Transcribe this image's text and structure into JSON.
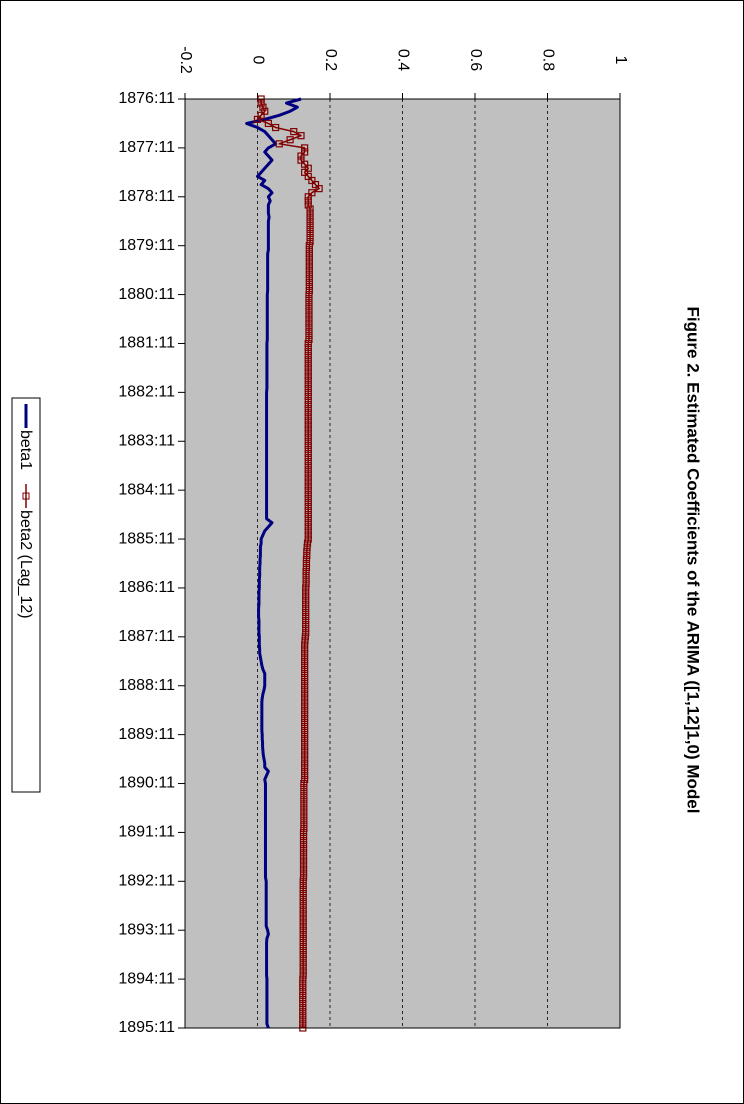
{
  "chart_data": {
    "type": "line",
    "title": "Figure 2. Estimated Coefficients of the ARIMA ([1,12]1,0) Model",
    "categories": [
      "1876:11",
      null,
      null,
      null,
      null,
      null,
      null,
      null,
      null,
      null,
      null,
      null,
      "1877:11",
      null,
      null,
      null,
      null,
      null,
      null,
      null,
      null,
      null,
      null,
      null,
      "1878:11",
      null,
      null,
      null,
      null,
      null,
      null,
      null,
      null,
      null,
      null,
      null,
      "1879:11",
      null,
      null,
      null,
      null,
      null,
      null,
      null,
      null,
      null,
      null,
      null,
      "1880:11",
      null,
      null,
      null,
      null,
      null,
      null,
      null,
      null,
      null,
      null,
      null,
      "1881:11",
      null,
      null,
      null,
      null,
      null,
      null,
      null,
      null,
      null,
      null,
      null,
      "1882:11",
      null,
      null,
      null,
      null,
      null,
      null,
      null,
      null,
      null,
      null,
      null,
      "1883:11",
      null,
      null,
      null,
      null,
      null,
      null,
      null,
      null,
      null,
      null,
      null,
      "1884:11",
      null,
      null,
      null,
      null,
      null,
      null,
      null,
      null,
      null,
      null,
      null,
      "1885:11",
      null,
      null,
      null,
      null,
      null,
      null,
      null,
      null,
      null,
      null,
      null,
      "1886:11",
      null,
      null,
      null,
      null,
      null,
      null,
      null,
      null,
      null,
      null,
      null,
      "1887:11",
      null,
      null,
      null,
      null,
      null,
      null,
      null,
      null,
      null,
      null,
      null,
      "1888:11",
      null,
      null,
      null,
      null,
      null,
      null,
      null,
      null,
      null,
      null,
      null,
      "1889:11",
      null,
      null,
      null,
      null,
      null,
      null,
      null,
      null,
      null,
      null,
      null,
      "1890:11",
      null,
      null,
      null,
      null,
      null,
      null,
      null,
      null,
      null,
      null,
      null,
      "1891:11",
      null,
      null,
      null,
      null,
      null,
      null,
      null,
      null,
      null,
      null,
      null,
      "1892:11",
      null,
      null,
      null,
      null,
      null,
      null,
      null,
      null,
      null,
      null,
      null,
      "1893:11",
      null,
      null,
      null,
      null,
      null,
      null,
      null,
      null,
      null,
      null,
      null,
      "1894:11",
      null,
      null,
      null,
      null,
      null,
      null,
      null,
      null,
      null,
      null,
      null,
      "1895:11"
    ],
    "series": [
      {
        "name": "beta1",
        "color": "#000080",
        "marker": false,
        "values": [
          0.12,
          0.08,
          0.11,
          0.09,
          0.06,
          0.02,
          -0.03,
          0.0,
          0.02,
          0.03,
          0.04,
          0.05,
          0.03,
          0.02,
          0.03,
          0.04,
          0.03,
          0.02,
          0.01,
          0.0,
          0.02,
          0.01,
          0.03,
          0.04,
          0.03,
          0.035,
          0.03,
          0.03,
          0.03,
          0.032,
          0.03,
          0.03,
          0.03,
          0.03,
          0.03,
          0.03,
          0.03,
          0.03,
          0.028,
          0.028,
          0.028,
          0.028,
          0.028,
          0.028,
          0.028,
          0.028,
          0.028,
          0.028,
          0.027,
          0.027,
          0.027,
          0.027,
          0.027,
          0.027,
          0.027,
          0.027,
          0.027,
          0.027,
          0.027,
          0.027,
          0.026,
          0.026,
          0.026,
          0.026,
          0.026,
          0.026,
          0.026,
          0.026,
          0.026,
          0.026,
          0.026,
          0.026,
          0.025,
          0.025,
          0.025,
          0.025,
          0.025,
          0.025,
          0.025,
          0.025,
          0.025,
          0.025,
          0.025,
          0.025,
          0.025,
          0.025,
          0.025,
          0.025,
          0.025,
          0.025,
          0.025,
          0.025,
          0.025,
          0.025,
          0.025,
          0.025,
          0.025,
          0.025,
          0.025,
          0.025,
          0.025,
          0.025,
          0.025,
          0.025,
          0.04,
          0.03,
          0.02,
          0.015,
          0.01,
          0.01,
          0.008,
          0.008,
          0.008,
          0.007,
          0.007,
          0.006,
          0.006,
          0.006,
          0.005,
          0.005,
          0.005,
          0.004,
          0.004,
          0.004,
          0.004,
          0.003,
          0.003,
          0.003,
          0.004,
          0.004,
          0.004,
          0.004,
          0.005,
          0.005,
          0.005,
          0.006,
          0.006,
          0.008,
          0.01,
          0.012,
          0.015,
          0.02,
          0.02,
          0.02,
          0.02,
          0.018,
          0.015,
          0.013,
          0.012,
          0.012,
          0.012,
          0.012,
          0.012,
          0.012,
          0.012,
          0.012,
          0.013,
          0.013,
          0.014,
          0.014,
          0.015,
          0.016,
          0.018,
          0.02,
          0.02,
          0.03,
          0.025,
          0.02,
          0.022,
          0.022,
          0.022,
          0.022,
          0.022,
          0.022,
          0.022,
          0.022,
          0.022,
          0.022,
          0.022,
          0.022,
          0.022,
          0.022,
          0.022,
          0.022,
          0.022,
          0.022,
          0.022,
          0.022,
          0.022,
          0.022,
          0.022,
          0.022,
          0.024,
          0.024,
          0.024,
          0.024,
          0.024,
          0.024,
          0.024,
          0.024,
          0.024,
          0.024,
          0.024,
          0.024,
          0.028,
          0.03,
          0.026,
          0.025,
          0.025,
          0.025,
          0.025,
          0.025,
          0.025,
          0.025,
          0.025,
          0.025,
          0.026,
          0.026,
          0.026,
          0.026,
          0.026,
          0.026,
          0.026,
          0.026,
          0.026,
          0.026,
          0.026,
          0.026,
          0.03
        ]
      },
      {
        "name": "beta2 (Lag_12)",
        "color": "#800000",
        "marker": true,
        "values": [
          0.01,
          0.01,
          0.015,
          0.02,
          0.01,
          0.0,
          0.03,
          0.05,
          0.1,
          0.12,
          0.09,
          0.06,
          0.13,
          0.13,
          0.12,
          0.12,
          0.13,
          0.14,
          0.13,
          0.14,
          0.15,
          0.16,
          0.17,
          0.15,
          0.14,
          0.14,
          0.14,
          0.145,
          0.145,
          0.145,
          0.145,
          0.145,
          0.145,
          0.145,
          0.145,
          0.145,
          0.143,
          0.143,
          0.143,
          0.143,
          0.143,
          0.143,
          0.143,
          0.143,
          0.143,
          0.143,
          0.143,
          0.143,
          0.142,
          0.142,
          0.142,
          0.142,
          0.142,
          0.142,
          0.142,
          0.142,
          0.142,
          0.142,
          0.142,
          0.142,
          0.14,
          0.14,
          0.14,
          0.14,
          0.14,
          0.14,
          0.14,
          0.14,
          0.14,
          0.14,
          0.14,
          0.14,
          0.14,
          0.14,
          0.14,
          0.14,
          0.14,
          0.14,
          0.14,
          0.14,
          0.14,
          0.14,
          0.14,
          0.14,
          0.14,
          0.14,
          0.14,
          0.14,
          0.14,
          0.14,
          0.14,
          0.14,
          0.14,
          0.14,
          0.14,
          0.14,
          0.14,
          0.14,
          0.14,
          0.14,
          0.14,
          0.14,
          0.14,
          0.14,
          0.14,
          0.14,
          0.14,
          0.14,
          0.14,
          0.138,
          0.137,
          0.136,
          0.136,
          0.135,
          0.135,
          0.135,
          0.134,
          0.134,
          0.134,
          0.134,
          0.133,
          0.133,
          0.133,
          0.133,
          0.133,
          0.133,
          0.133,
          0.133,
          0.133,
          0.133,
          0.133,
          0.133,
          0.132,
          0.131,
          0.13,
          0.13,
          0.13,
          0.13,
          0.13,
          0.13,
          0.13,
          0.13,
          0.13,
          0.13,
          0.13,
          0.13,
          0.13,
          0.13,
          0.13,
          0.13,
          0.13,
          0.13,
          0.13,
          0.13,
          0.13,
          0.13,
          0.13,
          0.13,
          0.13,
          0.13,
          0.13,
          0.13,
          0.13,
          0.13,
          0.13,
          0.13,
          0.13,
          0.13,
          0.128,
          0.128,
          0.128,
          0.128,
          0.128,
          0.128,
          0.128,
          0.128,
          0.128,
          0.128,
          0.128,
          0.128,
          0.127,
          0.127,
          0.127,
          0.127,
          0.127,
          0.127,
          0.127,
          0.127,
          0.127,
          0.127,
          0.127,
          0.127,
          0.126,
          0.126,
          0.126,
          0.126,
          0.126,
          0.126,
          0.126,
          0.126,
          0.126,
          0.126,
          0.126,
          0.126,
          0.126,
          0.126,
          0.126,
          0.126,
          0.126,
          0.126,
          0.126,
          0.126,
          0.126,
          0.126,
          0.126,
          0.126,
          0.125,
          0.125,
          0.125,
          0.125,
          0.125,
          0.125,
          0.125,
          0.125,
          0.125,
          0.125,
          0.125,
          0.125,
          0.125
        ]
      }
    ],
    "ylim": [
      -0.2,
      1
    ],
    "yticks": [
      -0.2,
      0,
      0.2,
      0.4,
      0.6,
      0.8,
      1
    ],
    "grid": true,
    "plot_background": "#c0c0c0"
  }
}
